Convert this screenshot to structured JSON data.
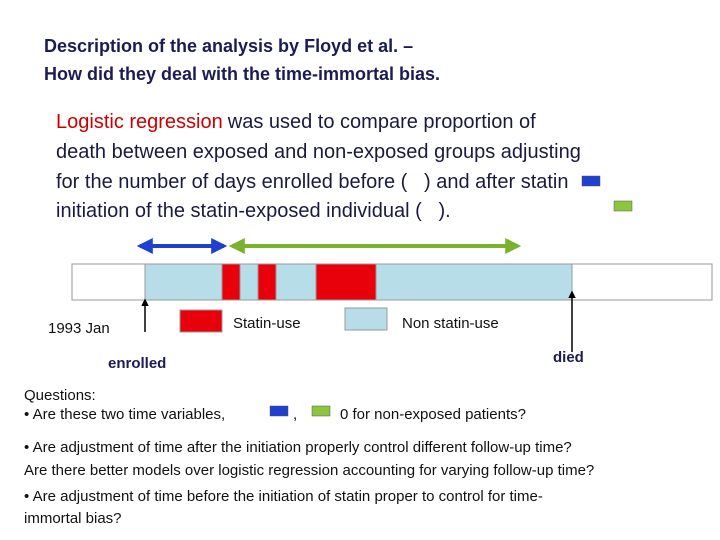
{
  "header": {
    "title": [
      "Description of the analysis by Floyd et al. –",
      "How did they deal with the time-immortal bias."
    ]
  },
  "paragraph": {
    "highlight": "Logistic regression",
    "lines": [
      "was used to compare proportion of",
      "death between exposed and non-exposed groups adjusting",
      "for the number of days enrolled before (   ) and after statin",
      "initiation of the statin-exposed individual (   )."
    ]
  },
  "diagram": {
    "start": "1993 Jan",
    "statin": "Statin-use",
    "non_statin": "Non statin-use",
    "enrolled": "enrolled",
    "died": "died"
  },
  "questions": {
    "heading": "Questions:",
    "first": [
      "• Are these two time variables,",
      ",",
      "0 for non-exposed patients?"
    ],
    "second": [
      "• Are adjustment of time after the initiation properly control different follow-up time?",
      "Are there better models over logistic regression accounting for varying follow-up time?"
    ],
    "third": [
      "• Are adjustment of time before the initiation of statin proper to control for time-",
      "immortal bias?"
    ]
  }
}
